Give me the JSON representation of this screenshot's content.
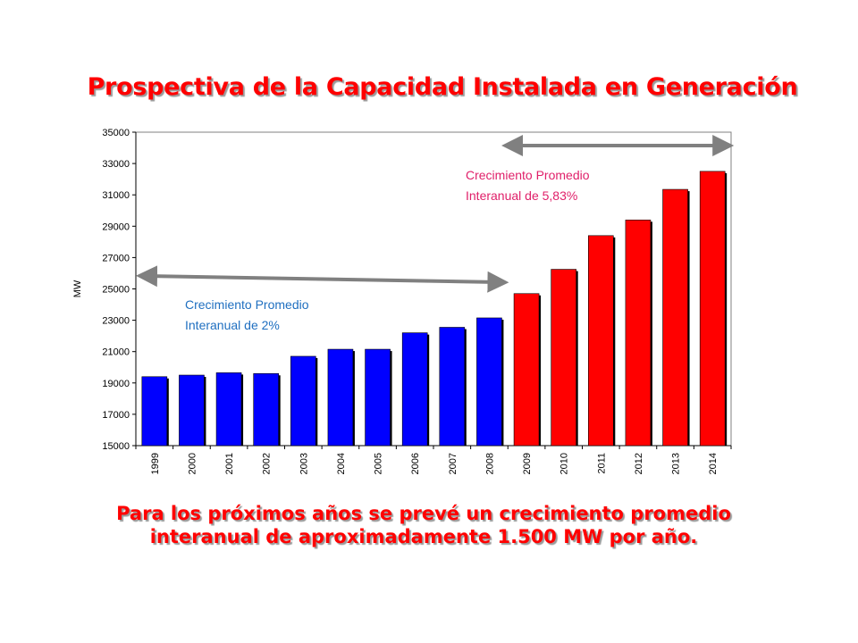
{
  "title": "Prospectiva de la Capacidad Instalada en Generación",
  "footer": {
    "line1": "Para los próximos años se prevé un crecimiento promedio",
    "line2": "interanual de aproximadamente 1.500 MW por año."
  },
  "chart_data": {
    "type": "bar",
    "ylabel": "MW",
    "ylim": [
      15000,
      35000
    ],
    "yticks": [
      15000,
      17000,
      19000,
      21000,
      23000,
      25000,
      27000,
      29000,
      31000,
      33000,
      35000
    ],
    "grid": false,
    "categories": [
      "1999",
      "2000",
      "2001",
      "2002",
      "2003",
      "2004",
      "2005",
      "2006",
      "2007",
      "2008",
      "2009",
      "2010",
      "2011",
      "2012",
      "2013",
      "2014"
    ],
    "values": [
      19400,
      19500,
      19650,
      19600,
      20700,
      21150,
      21150,
      22200,
      22550,
      23150,
      24700,
      26250,
      28400,
      29400,
      31350,
      32500
    ],
    "bar_colors": [
      "#0000ff",
      "#0000ff",
      "#0000ff",
      "#0000ff",
      "#0000ff",
      "#0000ff",
      "#0000ff",
      "#0000ff",
      "#0000ff",
      "#0000ff",
      "#ff0000",
      "#ff0000",
      "#ff0000",
      "#ff0000",
      "#ff0000",
      "#ff0000"
    ],
    "annotations": [
      {
        "line1": "Crecimiento Promedio",
        "line2": "Interanual de 2%",
        "color": "#1f6fc0",
        "from": "1999",
        "to": "2008"
      },
      {
        "line1": "Crecimiento Promedio",
        "line2": "Interanual de 5,83%",
        "color": "#e0206a",
        "from": "2009",
        "to": "2014"
      }
    ]
  }
}
